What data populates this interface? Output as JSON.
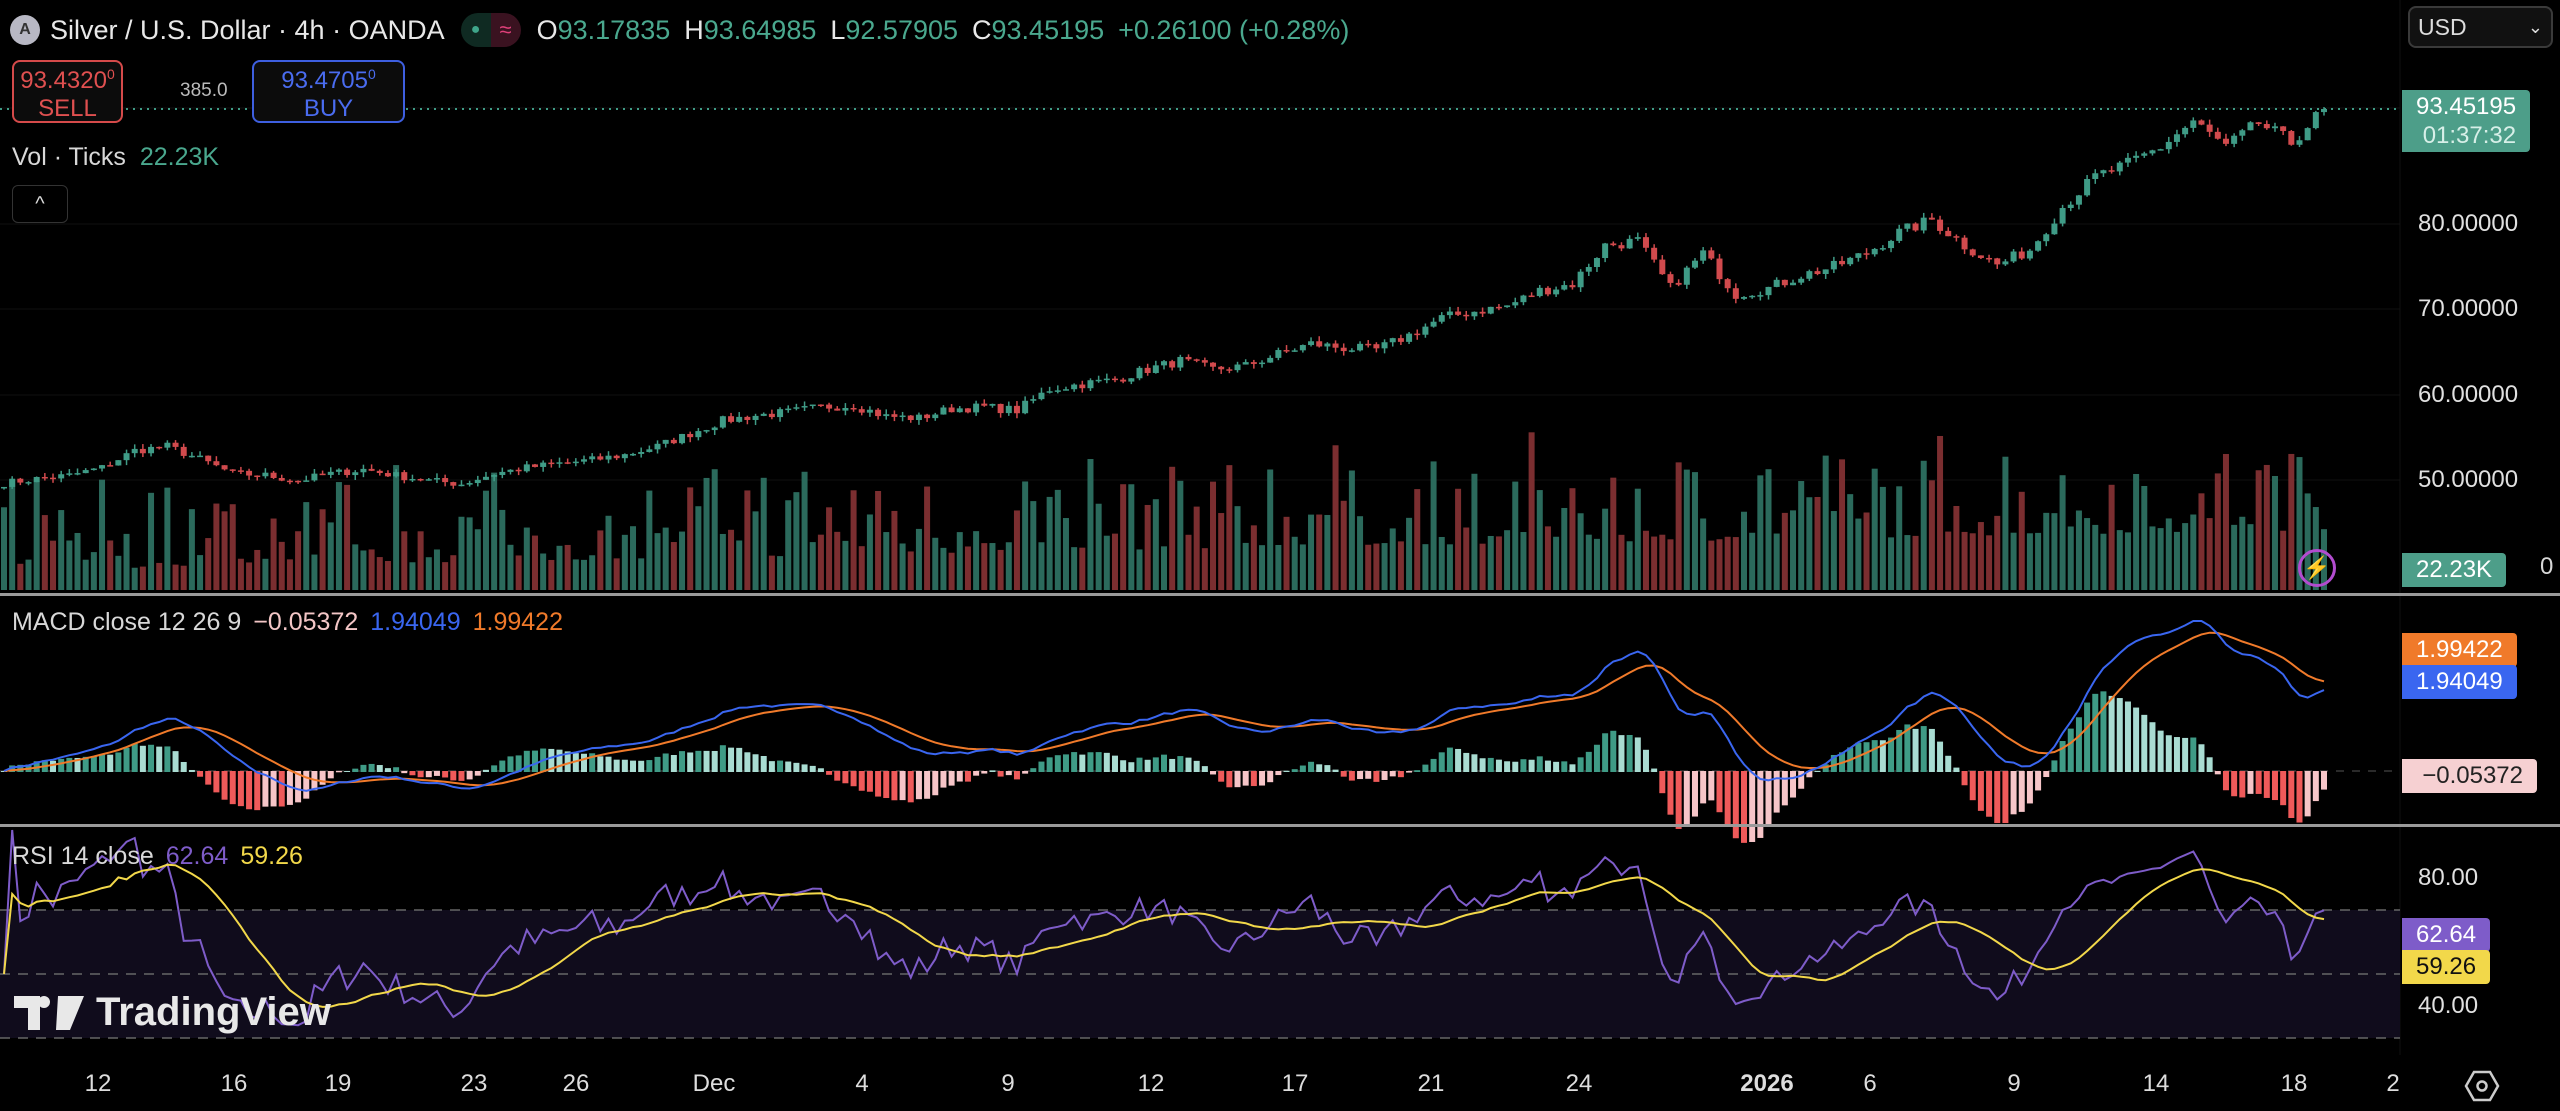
{
  "header": {
    "logo_letter": "A",
    "title": "Silver / U.S. Dollar · 4h · OANDA",
    "status_dot": "●",
    "status_wave": "≈",
    "ohlc": {
      "o_label": "O",
      "o": "93.17835",
      "h_label": "H",
      "h": "93.64985",
      "l_label": "L",
      "l": "92.57905",
      "c_label": "C",
      "c": "93.45195",
      "change": "+0.26100 (+0.28%)"
    }
  },
  "trade": {
    "sell_price": "93.4320",
    "sell_sup": "0",
    "sell_label": "SELL",
    "spread": "385.0",
    "buy_price": "93.4705",
    "buy_sup": "0",
    "buy_label": "BUY"
  },
  "volume": {
    "label": "Vol · Ticks",
    "value": "22.23K",
    "axis_zero": "0"
  },
  "collapse_icon": "^",
  "currency": {
    "selected": "USD",
    "chevron": "⌄"
  },
  "price_axis": {
    "ticks": [
      "80.00000",
      "70.00000",
      "60.00000",
      "50.00000"
    ],
    "last_price": "93.45195",
    "countdown": "01:37:32"
  },
  "macd": {
    "label": "MACD close 12 26 9",
    "hist": "−0.05372",
    "macd": "1.94049",
    "signal": "1.99422"
  },
  "rsi": {
    "label": "RSI 14 close",
    "rsi": "62.64",
    "ma": "59.26",
    "ticks": [
      "80.00",
      "40.00"
    ]
  },
  "time_axis": [
    "12",
    "16",
    "19",
    "23",
    "26",
    "Dec",
    "4",
    "9",
    "12",
    "17",
    "21",
    "24",
    "2026",
    "6",
    "9",
    "14",
    "18",
    "2"
  ],
  "watermark": "TradingView",
  "colors": {
    "up": "#3f9b86",
    "down": "#d14a4d",
    "macd": "#3a66f0",
    "signal": "#f07a2a",
    "rsi": "#7e5cc9",
    "rsi_ma": "#f2d84a"
  },
  "chart_data": {
    "type": "candlestick",
    "title": "Silver / U.S. Dollar · 4h · OANDA",
    "ylim": [
      43,
      97
    ],
    "yticks": [
      50,
      60,
      70,
      80
    ],
    "approx_close_path": [
      49.7,
      50.2,
      50.6,
      51.5,
      53.5,
      54,
      52.5,
      50.8,
      50.6,
      50,
      50.8,
      51.3,
      50.6,
      50,
      49.6,
      50.8,
      51.5,
      52,
      52.4,
      53,
      54,
      55.5,
      57,
      57.6,
      58,
      58.6,
      58.8,
      57.5,
      57.3,
      58.4,
      58.6,
      58.2,
      60.7,
      61.3,
      61.8,
      63,
      64,
      63,
      63.4,
      64.8,
      66,
      65.5,
      65.3,
      67,
      69,
      69.8,
      70.4,
      72.2,
      73,
      77.5,
      78,
      72.5,
      76.6,
      71.8,
      72.5,
      74,
      75,
      76.6,
      79,
      80.5,
      77.5,
      75.2,
      77,
      82,
      85.5,
      87,
      89,
      92,
      89,
      91.8,
      89.5,
      93.45
    ],
    "last_close": 93.45195,
    "rsi_levels": [
      70,
      50,
      30
    ]
  }
}
